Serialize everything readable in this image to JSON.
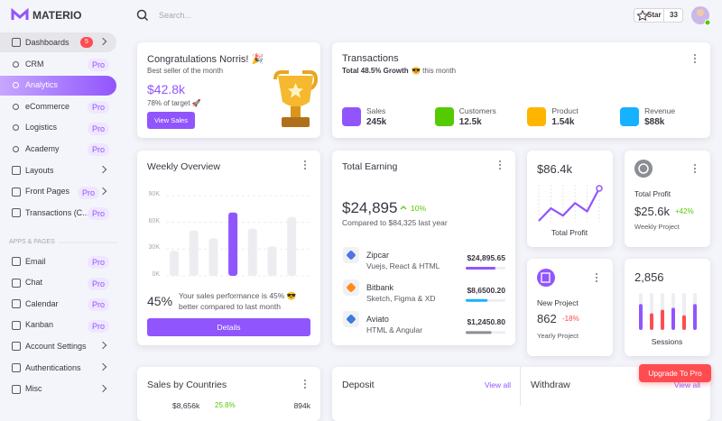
{
  "topbar": {
    "brand": "MATERIO",
    "search": "Search...",
    "star_label": "Star",
    "star_count": 33
  },
  "sidebar": {
    "dashboards": {
      "label": "Dashboards",
      "badge": 5
    },
    "dashboard_children": [
      {
        "label": "CRM",
        "badge": "Pro"
      },
      {
        "label": "Analytics",
        "active": true
      },
      {
        "label": "eCommerce",
        "badge": "Pro"
      },
      {
        "label": "Logistics",
        "badge": "Pro"
      },
      {
        "label": "Academy",
        "badge": "Pro"
      }
    ],
    "pages": [
      {
        "label": "Layouts",
        "expandable": true
      },
      {
        "label": "Front Pages",
        "badge": "Pro",
        "expandable": true
      },
      {
        "label": "Transactions (C...",
        "badge": "Pro"
      }
    ],
    "section": "APPS & PAGES",
    "apps": [
      {
        "label": "Email",
        "badge": "Pro"
      },
      {
        "label": "Chat",
        "badge": "Pro"
      },
      {
        "label": "Calendar",
        "badge": "Pro"
      },
      {
        "label": "Kanban",
        "badge": "Pro"
      },
      {
        "label": "Account Settings",
        "expandable": true
      },
      {
        "label": "Authentications",
        "expandable": true
      },
      {
        "label": "Misc",
        "expandable": true
      }
    ]
  },
  "congrats": {
    "title": "Congratulations Norris! 🎉",
    "subtitle": "Best seller of the month",
    "amount": "$42.8k",
    "target": "78% of target 🚀",
    "button": "View Sales"
  },
  "transactions": {
    "title": "Transactions",
    "growth": "Total 48.5% Growth",
    "growth_note": "😎 this month",
    "stats": [
      {
        "label": "Sales",
        "value": "245k",
        "color": "#9155fd"
      },
      {
        "label": "Customers",
        "value": "12.5k",
        "color": "#56ca00"
      },
      {
        "label": "Product",
        "value": "1.54k",
        "color": "#ffb400"
      },
      {
        "label": "Revenue",
        "value": "$88k",
        "color": "#16b1ff"
      }
    ]
  },
  "weekly_overview": {
    "title": "Weekly Overview",
    "ylim": [
      0,
      90
    ],
    "yticks": [
      {
        "value": 90,
        "label": "90K"
      },
      {
        "value": 60,
        "label": "60K"
      },
      {
        "value": 30,
        "label": "30K"
      },
      {
        "value": 0,
        "label": "0K"
      }
    ],
    "bars": [
      28,
      51,
      42,
      71,
      53,
      33,
      66
    ],
    "highlight": 3,
    "bar_color": "#ededf1",
    "highlight_color": "#9155fd",
    "percent": "45%",
    "text": "Your sales performance is 45% 😎 better compared to last month",
    "button": "Details"
  },
  "total_earning": {
    "title": "Total Earning",
    "amount": "$24,895",
    "change": "10%",
    "compare": "Compared to $84,325 last year",
    "items": [
      {
        "name": "Zipcar",
        "sub": "Vuejs, React & HTML",
        "amount": "$24,895.65",
        "progress": 75,
        "color": "#9155fd",
        "icon_color": "#4e73e5"
      },
      {
        "name": "Bitbank",
        "sub": "Sketch, Figma & XD",
        "amount": "$8,6500.20",
        "progress": 55,
        "color": "#16b1ff",
        "icon_color": "#ff8a1f"
      },
      {
        "name": "Aviato",
        "sub": "HTML & Angular",
        "amount": "$1,2450.80",
        "progress": 65,
        "color": "#8a8d93",
        "icon_color": "#3a7bdc"
      }
    ]
  },
  "profit_chart": {
    "amount": "$86.4k",
    "label": "Total Profit",
    "values": [
      8,
      32,
      18,
      42,
      26,
      70
    ],
    "color": "#9155fd"
  },
  "profit_stats": {
    "title": "Total Profit",
    "amount": "$25.6k",
    "change": "+42%",
    "note": "Weekly Project"
  },
  "new_project": {
    "title": "New Project",
    "value": "862",
    "change": "-18%",
    "note": "Yearly Project"
  },
  "sessions": {
    "value": "2,856",
    "label": "Sessions",
    "bars": [
      {
        "value": 70,
        "color": "#9155fd"
      },
      {
        "value": 45,
        "color": "#ff4c51"
      },
      {
        "value": 55,
        "color": "#ff4c51"
      },
      {
        "value": 60,
        "color": "#9155fd"
      },
      {
        "value": 40,
        "color": "#ff4c51"
      },
      {
        "value": 70,
        "color": "#9155fd"
      }
    ]
  },
  "sales_by_countries": {
    "title": "Sales by Countries",
    "first_amount": "$8,656k",
    "first_change": "25.8%",
    "first_sales": "894k"
  },
  "deposit": {
    "title": "Deposit",
    "link": "View all"
  },
  "withdraw": {
    "title": "Withdraw",
    "link": "View all"
  },
  "upgrade": "Upgrade To Pro"
}
